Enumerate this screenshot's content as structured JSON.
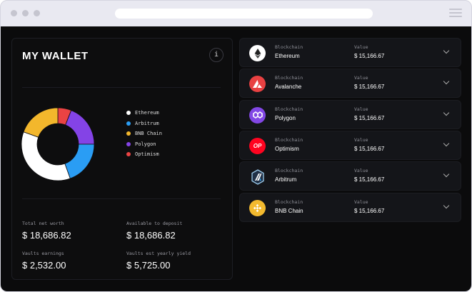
{
  "wallet": {
    "title": "MY WALLET",
    "info_icon": "i"
  },
  "chart_data": {
    "type": "pie",
    "donut": true,
    "categories": [
      "Ethereum",
      "Arbitrum",
      "BNB Chain",
      "Polygon",
      "Optimism"
    ],
    "values": [
      36,
      19.5,
      19.5,
      19,
      6
    ],
    "colors": [
      "#ffffff",
      "#2a9df4",
      "#f3b72c",
      "#8443e6",
      "#ea4343"
    ],
    "legend_position": "right"
  },
  "stats": [
    {
      "label": "Total net worth",
      "value": "$ 18,686.82"
    },
    {
      "label": "Available to deposit",
      "value": "$ 18,686.82"
    },
    {
      "label": "Vaults earnings",
      "value": "$ 2,532.00"
    },
    {
      "label": "Vaults est yearly yield",
      "value": "$ 5,725.00"
    }
  ],
  "chains": [
    {
      "label": "Blockchain",
      "name": "Ethereum",
      "value_label": "Value",
      "value": "$ 15,166.67",
      "icon": "ethereum-icon",
      "color": "#ffffff"
    },
    {
      "label": "Blockchain",
      "name": "Avalanche",
      "value_label": "Value",
      "value": "$ 15,166.67",
      "icon": "avalanche-icon",
      "color": "#e84142"
    },
    {
      "label": "Blockchain",
      "name": "Polygon",
      "value_label": "Value",
      "value": "$ 15,166.67",
      "icon": "polygon-icon",
      "color": "#8247e5"
    },
    {
      "label": "Blockchain",
      "name": "Optimism",
      "value_label": "Value",
      "value": "$ 15,166.67",
      "icon": "optimism-icon",
      "color": "#ff0420",
      "logo_text": "OP"
    },
    {
      "label": "Blockchain",
      "name": "Arbitrum",
      "value_label": "Value",
      "value": "$ 15,166.67",
      "icon": "arbitrum-icon",
      "color": "#2d374b"
    },
    {
      "label": "Blockchain",
      "name": "BNB Chain",
      "value_label": "Value",
      "value": "$ 15,166.67",
      "icon": "bnb-icon",
      "color": "#f3ba2f"
    }
  ]
}
